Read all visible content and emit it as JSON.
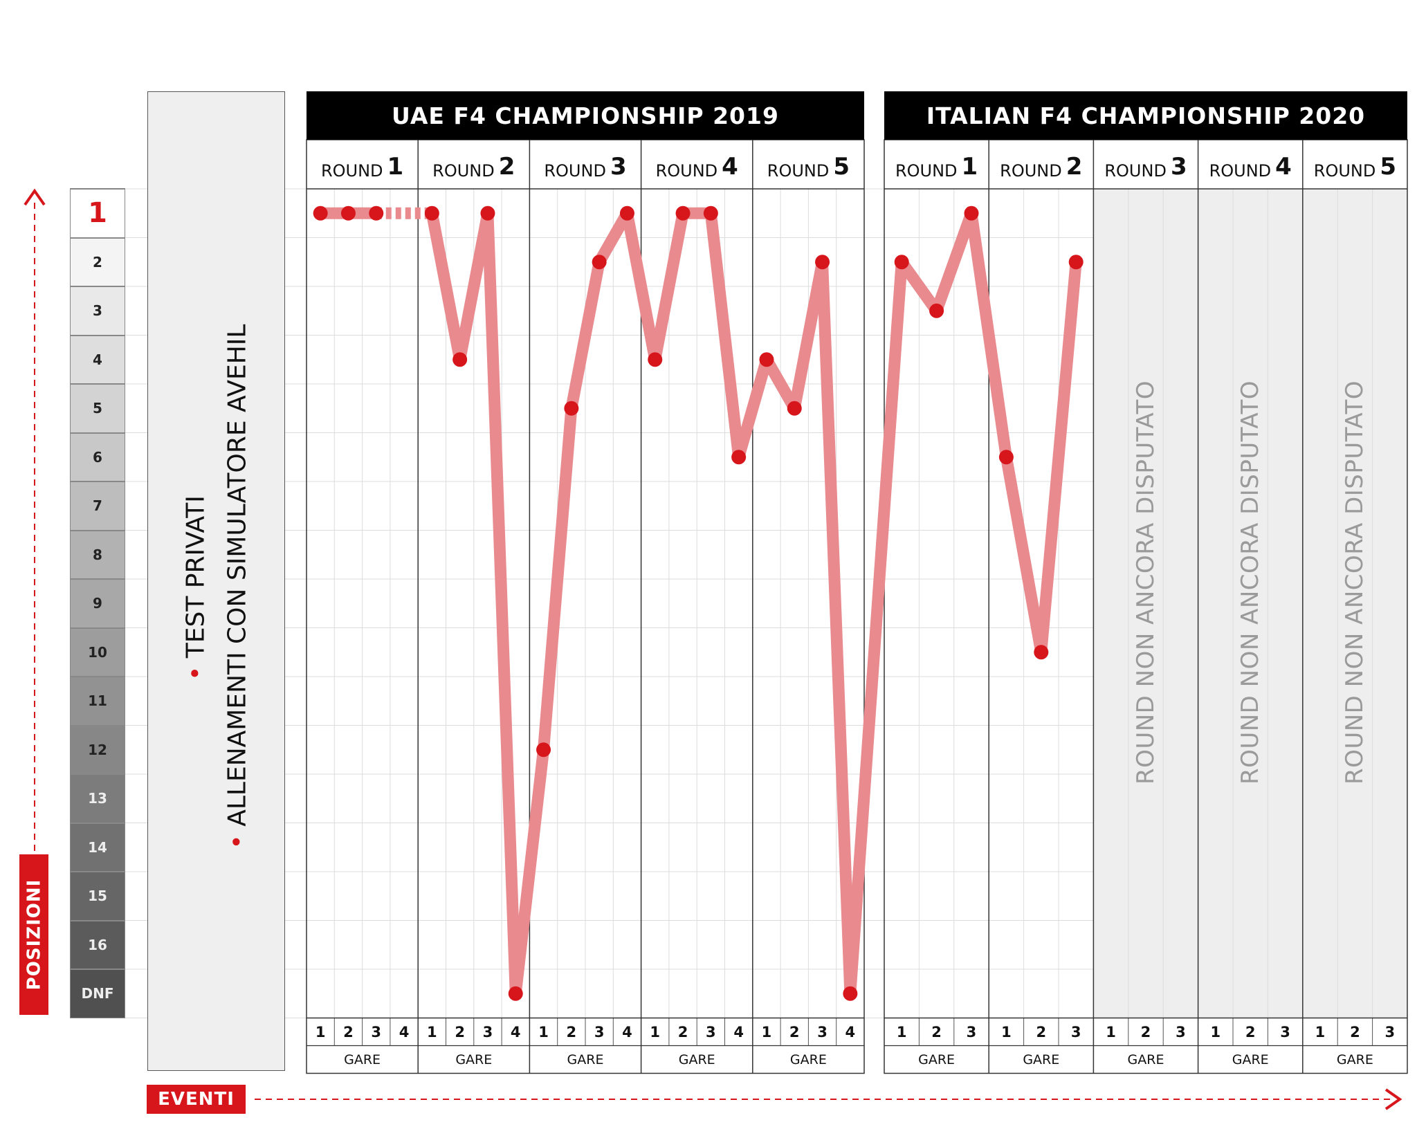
{
  "labels": {
    "y_axis": "POSIZIONI",
    "x_axis": "EVENTI",
    "side_items": [
      "TEST PRIVATI",
      "ALLENAMENTI CON SIMULATORE AVEHIL"
    ],
    "not_played": "ROUND NON ANCORA DISPUTATO",
    "gare": "GARE",
    "round_word": "ROUND"
  },
  "colors": {
    "accent": "#d7161c",
    "line": "#e88a8e",
    "header_bg": "#000000",
    "not_played_bg": "#eeeeee"
  },
  "chart_data": {
    "type": "line",
    "positions": [
      "1",
      "2",
      "3",
      "4",
      "5",
      "6",
      "7",
      "8",
      "9",
      "10",
      "11",
      "12",
      "13",
      "14",
      "15",
      "16",
      "DNF"
    ],
    "championships": [
      {
        "name": "UAE F4 CHAMPIONSHIP 2019",
        "rounds": [
          {
            "round": "1",
            "races": [
              "1",
              "2",
              "3",
              "4"
            ],
            "results": [
              1,
              1,
              1,
              null
            ],
            "dashed_to_next": true
          },
          {
            "round": "2",
            "races": [
              "1",
              "2",
              "3",
              "4"
            ],
            "results": [
              1,
              4,
              1,
              "DNF"
            ]
          },
          {
            "round": "3",
            "races": [
              "1",
              "2",
              "3",
              "4"
            ],
            "results": [
              12,
              5,
              2,
              1
            ]
          },
          {
            "round": "4",
            "races": [
              "1",
              "2",
              "3",
              "4"
            ],
            "results": [
              4,
              1,
              1,
              6
            ]
          },
          {
            "round": "5",
            "races": [
              "1",
              "2",
              "3",
              "4"
            ],
            "results": [
              4,
              5,
              2,
              "DNF"
            ]
          }
        ]
      },
      {
        "name": "ITALIAN F4 CHAMPIONSHIP 2020",
        "rounds": [
          {
            "round": "1",
            "races": [
              "1",
              "2",
              "3"
            ],
            "results": [
              2,
              3,
              1
            ]
          },
          {
            "round": "2",
            "races": [
              "1",
              "2",
              "3"
            ],
            "results": [
              6,
              10,
              2
            ]
          },
          {
            "round": "3",
            "races": [
              "1",
              "2",
              "3"
            ],
            "results": [
              null,
              null,
              null
            ],
            "not_played": true
          },
          {
            "round": "4",
            "races": [
              "1",
              "2",
              "3"
            ],
            "results": [
              null,
              null,
              null
            ],
            "not_played": true
          },
          {
            "round": "5",
            "races": [
              "1",
              "2",
              "3"
            ],
            "results": [
              null,
              null,
              null
            ],
            "not_played": true
          }
        ]
      }
    ]
  }
}
